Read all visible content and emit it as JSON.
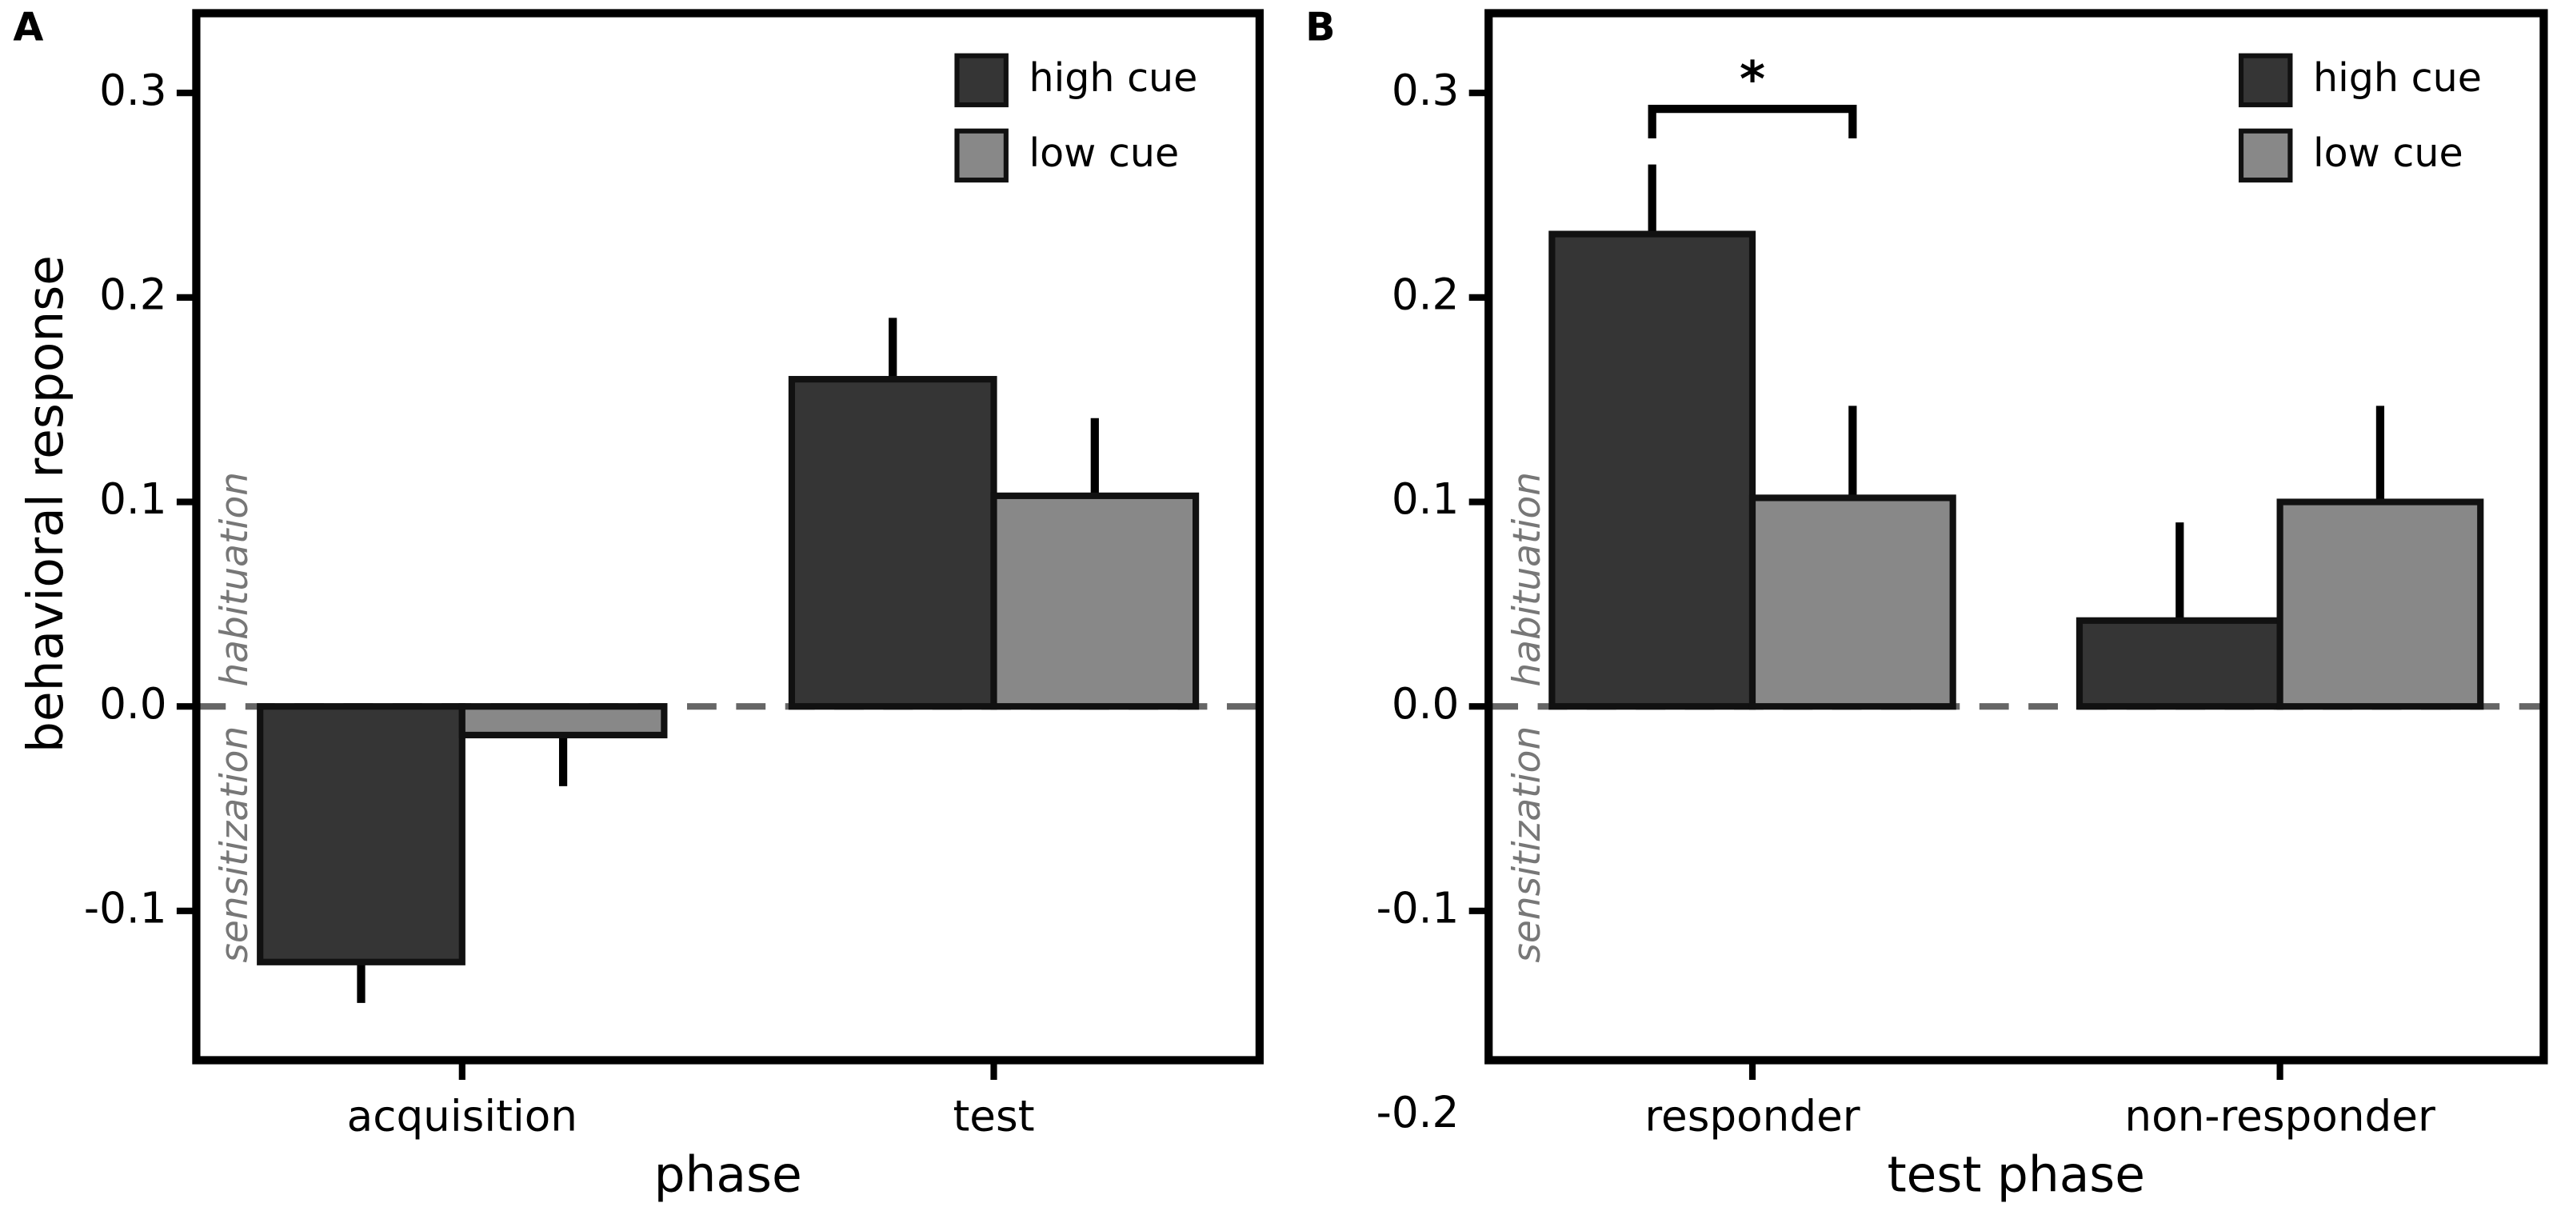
{
  "chart_data": [
    {
      "type": "bar",
      "panel_label": "A",
      "xlabel": "phase",
      "ylabel": "behavioral response",
      "categories": [
        "acquisition",
        "test"
      ],
      "series": [
        {
          "name": "high cue",
          "color": "#353535",
          "values": [
            -0.125,
            0.16
          ],
          "errors": [
            0.02,
            0.03
          ]
        },
        {
          "name": "low cue",
          "color": "#888888",
          "values": [
            -0.014,
            0.103
          ],
          "errors": [
            0.025,
            0.038
          ]
        }
      ],
      "ylim": [
        -0.173,
        0.339
      ],
      "yticks": [
        -0.1,
        {
          "value": 0,
          "label": "0.0"
        },
        0.1,
        0.2,
        0.3
      ],
      "zero_line": true,
      "legend": "upper right",
      "region_labels": {
        "above": "habituation",
        "below": "sensitization"
      }
    },
    {
      "type": "bar",
      "panel_label": "B",
      "xlabel": "test phase",
      "categories": [
        "responder",
        "non-responder"
      ],
      "series": [
        {
          "name": "high cue",
          "color": "#353535",
          "values": [
            0.231,
            0.042
          ],
          "errors": [
            0.034,
            0.048
          ]
        },
        {
          "name": "low cue",
          "color": "#888888",
          "values": [
            0.102,
            0.1
          ],
          "errors": [
            0.045,
            0.047
          ]
        }
      ],
      "ylim": [
        -0.173,
        0.339
      ],
      "yticks": [
        -0.2,
        -0.1,
        {
          "value": 0,
          "label": "0.0"
        },
        0.1,
        0.2,
        0.3
      ],
      "zero_line": true,
      "legend": "upper right",
      "region_labels": {
        "above": "habituation",
        "below": "sensitization"
      },
      "significance": [
        {
          "label": "*",
          "category": 0
        }
      ]
    }
  ]
}
